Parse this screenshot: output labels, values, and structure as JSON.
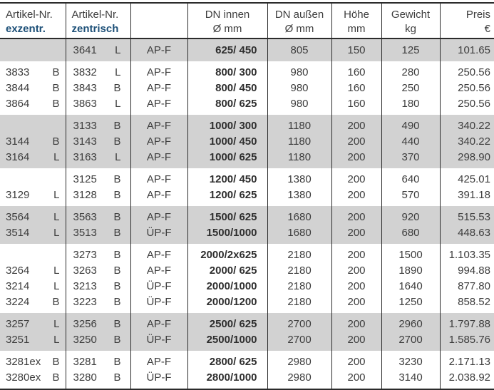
{
  "colors": {
    "accent_blue": "#1d5078",
    "row_gray": "#d2d2d2",
    "line": "#2b2b2b",
    "text": "#3d3d3d"
  },
  "header": {
    "cols": [
      {
        "l1": "Artikel-Nr.",
        "l2": "exzentr."
      },
      {
        "l1": "Artikel-Nr.",
        "l2": "zentrisch"
      },
      {
        "l1": "",
        "l2": ""
      },
      {
        "l1": "DN innen",
        "l2": "Ø mm"
      },
      {
        "l1": "DN außen",
        "l2": "Ø mm"
      },
      {
        "l1": "Höhe",
        "l2": "mm"
      },
      {
        "l1": "Gewicht",
        "l2": "kg"
      },
      {
        "l1": "Preis",
        "l2": "€"
      }
    ]
  },
  "table": {
    "groups": [
      {
        "shade": "gray",
        "rows": [
          {
            "ex_nr": "",
            "ex_code": "",
            "z_nr": "3641",
            "z_code": "L",
            "typ": "AP-F",
            "dn_innen": "625/ 450",
            "dn_aussen": "805",
            "hoehe": "150",
            "gewicht": "125",
            "preis": "101.65"
          }
        ]
      },
      {
        "shade": "white",
        "rows": [
          {
            "ex_nr": "3833",
            "ex_code": "B",
            "z_nr": "3832",
            "z_code": "L",
            "typ": "AP-F",
            "dn_innen": "800/ 300",
            "dn_aussen": "980",
            "hoehe": "160",
            "gewicht": "280",
            "preis": "250.56"
          },
          {
            "ex_nr": "3844",
            "ex_code": "B",
            "z_nr": "3843",
            "z_code": "B",
            "typ": "AP-F",
            "dn_innen": "800/ 450",
            "dn_aussen": "980",
            "hoehe": "160",
            "gewicht": "250",
            "preis": "250.56"
          },
          {
            "ex_nr": "3864",
            "ex_code": "B",
            "z_nr": "3863",
            "z_code": "L",
            "typ": "AP-F",
            "dn_innen": "800/ 625",
            "dn_aussen": "980",
            "hoehe": "160",
            "gewicht": "180",
            "preis": "250.56"
          }
        ]
      },
      {
        "shade": "gray",
        "rows": [
          {
            "ex_nr": "",
            "ex_code": "",
            "z_nr": "3133",
            "z_code": "B",
            "typ": "AP-F",
            "dn_innen": "1000/ 300",
            "dn_aussen": "1180",
            "hoehe": "200",
            "gewicht": "490",
            "preis": "340.22"
          },
          {
            "ex_nr": "3144",
            "ex_code": "B",
            "z_nr": "3143",
            "z_code": "B",
            "typ": "AP-F",
            "dn_innen": "1000/ 450",
            "dn_aussen": "1180",
            "hoehe": "200",
            "gewicht": "440",
            "preis": "340.22"
          },
          {
            "ex_nr": "3164",
            "ex_code": "L",
            "z_nr": "3163",
            "z_code": "L",
            "typ": "AP-F",
            "dn_innen": "1000/ 625",
            "dn_aussen": "1180",
            "hoehe": "200",
            "gewicht": "370",
            "preis": "298.90"
          }
        ]
      },
      {
        "shade": "white",
        "rows": [
          {
            "ex_nr": "",
            "ex_code": "",
            "z_nr": "3125",
            "z_code": "B",
            "typ": "AP-F",
            "dn_innen": "1200/ 450",
            "dn_aussen": "1380",
            "hoehe": "200",
            "gewicht": "640",
            "preis": "425.01"
          },
          {
            "ex_nr": "3129",
            "ex_code": "L",
            "z_nr": "3128",
            "z_code": "B",
            "typ": "AP-F",
            "dn_innen": "1200/ 625",
            "dn_aussen": "1380",
            "hoehe": "200",
            "gewicht": "570",
            "preis": "391.18"
          }
        ]
      },
      {
        "shade": "gray",
        "rows": [
          {
            "ex_nr": "3564",
            "ex_code": "L",
            "z_nr": "3563",
            "z_code": "B",
            "typ": "AP-F",
            "dn_innen": "1500/ 625",
            "dn_aussen": "1680",
            "hoehe": "200",
            "gewicht": "920",
            "preis": "515.53"
          },
          {
            "ex_nr": "3514",
            "ex_code": "L",
            "z_nr": "3513",
            "z_code": "B",
            "typ": "ÜP-F",
            "dn_innen": "1500/1000",
            "dn_aussen": "1680",
            "hoehe": "200",
            "gewicht": "680",
            "preis": "448.63"
          }
        ]
      },
      {
        "shade": "white",
        "rows": [
          {
            "ex_nr": "",
            "ex_code": "",
            "z_nr": "3273",
            "z_code": "B",
            "typ": "AP-F",
            "dn_innen": "2000/2x625",
            "dn_aussen": "2180",
            "hoehe": "200",
            "gewicht": "1500",
            "preis": "1.103.35"
          },
          {
            "ex_nr": "3264",
            "ex_code": "L",
            "z_nr": "3263",
            "z_code": "B",
            "typ": "AP-F",
            "dn_innen": "2000/ 625",
            "dn_aussen": "2180",
            "hoehe": "200",
            "gewicht": "1890",
            "preis": "994.88"
          },
          {
            "ex_nr": "3214",
            "ex_code": "L",
            "z_nr": "3213",
            "z_code": "B",
            "typ": "ÜP-F",
            "dn_innen": "2000/1000",
            "dn_aussen": "2180",
            "hoehe": "200",
            "gewicht": "1640",
            "preis": "877.80"
          },
          {
            "ex_nr": "3224",
            "ex_code": "B",
            "z_nr": "3223",
            "z_code": "B",
            "typ": "ÜP-F",
            "dn_innen": "2000/1200",
            "dn_aussen": "2180",
            "hoehe": "200",
            "gewicht": "1250",
            "preis": "858.52"
          }
        ]
      },
      {
        "shade": "gray",
        "rows": [
          {
            "ex_nr": "3257",
            "ex_code": "L",
            "z_nr": "3256",
            "z_code": "B",
            "typ": "AP-F",
            "dn_innen": "2500/ 625",
            "dn_aussen": "2700",
            "hoehe": "200",
            "gewicht": "2960",
            "preis": "1.797.88"
          },
          {
            "ex_nr": "3251",
            "ex_code": "L",
            "z_nr": "3250",
            "z_code": "B",
            "typ": "ÜP-F",
            "dn_innen": "2500/1000",
            "dn_aussen": "2700",
            "hoehe": "200",
            "gewicht": "2700",
            "preis": "1.585.76"
          }
        ]
      },
      {
        "shade": "white",
        "rows": [
          {
            "ex_nr": "3281ex",
            "ex_code": "B",
            "z_nr": "3281",
            "z_code": "B",
            "typ": "AP-F",
            "dn_innen": "2800/ 625",
            "dn_aussen": "2980",
            "hoehe": "200",
            "gewicht": "3230",
            "preis": "2.171.13"
          },
          {
            "ex_nr": "3280ex",
            "ex_code": "B",
            "z_nr": "3280",
            "z_code": "B",
            "typ": "ÜP-F",
            "dn_innen": "2800/1000",
            "dn_aussen": "2980",
            "hoehe": "200",
            "gewicht": "3140",
            "preis": "2.038.92"
          }
        ]
      }
    ]
  }
}
